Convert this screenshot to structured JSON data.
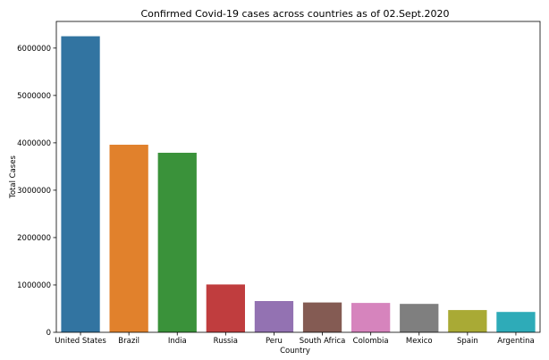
{
  "chart_data": {
    "type": "bar",
    "title": "Confirmed Covid-19 cases across countries as of 02.Sept.2020",
    "xlabel": "Country",
    "ylabel": "Total Cases",
    "categories": [
      "United States",
      "Brazil",
      "India",
      "Russia",
      "Peru",
      "South Africa",
      "Colombia",
      "Mexico",
      "Spain",
      "Argentina"
    ],
    "values": [
      6250000,
      3960000,
      3790000,
      1010000,
      660000,
      630000,
      620000,
      600000,
      470000,
      430000
    ],
    "colors": [
      "#3274a1",
      "#e1812c",
      "#3a923a",
      "#c03d3e",
      "#9372b2",
      "#845b53",
      "#d684bd",
      "#7f7f7f",
      "#a9aa35",
      "#2eabb8"
    ],
    "ylim": [
      0,
      6562500
    ],
    "yticks": [
      0,
      1000000,
      2000000,
      3000000,
      4000000,
      5000000,
      6000000
    ],
    "ytick_labels": [
      "0",
      "1000000",
      "2000000",
      "3000000",
      "4000000",
      "5000000",
      "6000000"
    ],
    "grid": false,
    "legend": "none"
  }
}
